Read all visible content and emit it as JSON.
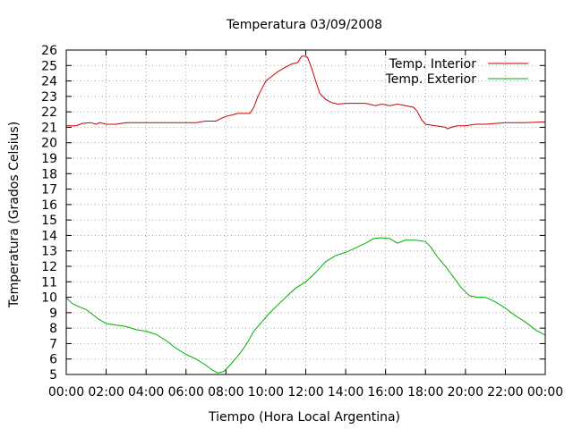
{
  "chart_data": {
    "type": "line",
    "title": "Temperatura 03/09/2008",
    "xlabel": "Tiempo (Hora Local Argentina)",
    "ylabel": "Temperatura (Grados Celsius)",
    "xlim": [
      0,
      24
    ],
    "ylim": [
      5,
      26
    ],
    "grid": true,
    "legend_position": "top-right",
    "x_ticks": [
      "00:00",
      "02:00",
      "04:00",
      "06:00",
      "08:00",
      "10:00",
      "12:00",
      "14:00",
      "16:00",
      "18:00",
      "20:00",
      "22:00",
      "00:00"
    ],
    "y_ticks": [
      5,
      6,
      7,
      8,
      9,
      10,
      11,
      12,
      13,
      14,
      15,
      16,
      17,
      18,
      19,
      20,
      21,
      22,
      23,
      24,
      25,
      26
    ],
    "series": [
      {
        "name": "Temp. Interior",
        "color": "#cc0000",
        "points": [
          [
            0,
            21.1
          ],
          [
            0.5,
            21.1
          ],
          [
            0.8,
            21.25
          ],
          [
            1.2,
            21.3
          ],
          [
            1.5,
            21.2
          ],
          [
            1.7,
            21.3
          ],
          [
            2,
            21.2
          ],
          [
            2.5,
            21.2
          ],
          [
            3,
            21.3
          ],
          [
            4,
            21.3
          ],
          [
            5,
            21.3
          ],
          [
            6,
            21.3
          ],
          [
            6.5,
            21.3
          ],
          [
            7,
            21.4
          ],
          [
            7.5,
            21.4
          ],
          [
            7.8,
            21.6
          ],
          [
            8,
            21.7
          ],
          [
            8.3,
            21.8
          ],
          [
            8.6,
            21.9
          ],
          [
            9,
            21.9
          ],
          [
            9.2,
            21.9
          ],
          [
            9.4,
            22.3
          ],
          [
            9.6,
            23.0
          ],
          [
            9.8,
            23.5
          ],
          [
            10,
            24.0
          ],
          [
            10.3,
            24.3
          ],
          [
            10.6,
            24.6
          ],
          [
            11,
            24.9
          ],
          [
            11.3,
            25.1
          ],
          [
            11.6,
            25.2
          ],
          [
            11.8,
            25.6
          ],
          [
            12,
            25.6
          ],
          [
            12.1,
            25.5
          ],
          [
            12.3,
            24.8
          ],
          [
            12.5,
            24.0
          ],
          [
            12.7,
            23.2
          ],
          [
            13,
            22.8
          ],
          [
            13.3,
            22.6
          ],
          [
            13.6,
            22.5
          ],
          [
            14,
            22.55
          ],
          [
            15,
            22.55
          ],
          [
            15.5,
            22.4
          ],
          [
            15.8,
            22.5
          ],
          [
            16.2,
            22.4
          ],
          [
            16.6,
            22.5
          ],
          [
            17,
            22.4
          ],
          [
            17.4,
            22.3
          ],
          [
            17.6,
            22.0
          ],
          [
            17.8,
            21.5
          ],
          [
            18,
            21.2
          ],
          [
            18.5,
            21.1
          ],
          [
            19,
            21.0
          ],
          [
            19.1,
            20.9
          ],
          [
            19.3,
            21.0
          ],
          [
            19.6,
            21.1
          ],
          [
            20,
            21.1
          ],
          [
            20.5,
            21.2
          ],
          [
            21,
            21.2
          ],
          [
            22,
            21.3
          ],
          [
            23,
            21.3
          ],
          [
            24,
            21.35
          ]
        ]
      },
      {
        "name": "Temp. Exterior",
        "color": "#00b000",
        "points": [
          [
            0,
            9.95
          ],
          [
            0.3,
            9.6
          ],
          [
            0.6,
            9.4
          ],
          [
            1,
            9.2
          ],
          [
            1.3,
            8.9
          ],
          [
            1.6,
            8.6
          ],
          [
            2,
            8.3
          ],
          [
            2.5,
            8.2
          ],
          [
            3,
            8.1
          ],
          [
            3.5,
            7.9
          ],
          [
            4,
            7.8
          ],
          [
            4.5,
            7.6
          ],
          [
            5,
            7.2
          ],
          [
            5.5,
            6.7
          ],
          [
            6,
            6.3
          ],
          [
            6.5,
            6.0
          ],
          [
            7,
            5.6
          ],
          [
            7.3,
            5.3
          ],
          [
            7.6,
            5.1
          ],
          [
            7.9,
            5.2
          ],
          [
            8.2,
            5.6
          ],
          [
            8.6,
            6.2
          ],
          [
            9,
            6.9
          ],
          [
            9.4,
            7.8
          ],
          [
            9.8,
            8.4
          ],
          [
            10.2,
            9.0
          ],
          [
            10.6,
            9.5
          ],
          [
            11,
            10.0
          ],
          [
            11.5,
            10.6
          ],
          [
            12,
            11.0
          ],
          [
            12.5,
            11.6
          ],
          [
            13,
            12.3
          ],
          [
            13.5,
            12.7
          ],
          [
            14,
            12.9
          ],
          [
            14.5,
            13.2
          ],
          [
            15,
            13.5
          ],
          [
            15.4,
            13.8
          ],
          [
            15.8,
            13.85
          ],
          [
            16.2,
            13.8
          ],
          [
            16.6,
            13.5
          ],
          [
            17,
            13.7
          ],
          [
            17.5,
            13.7
          ],
          [
            18,
            13.6
          ],
          [
            18.3,
            13.2
          ],
          [
            18.6,
            12.6
          ],
          [
            19,
            12.0
          ],
          [
            19.4,
            11.3
          ],
          [
            19.8,
            10.6
          ],
          [
            20.2,
            10.1
          ],
          [
            20.6,
            10.0
          ],
          [
            21,
            10.0
          ],
          [
            21.5,
            9.7
          ],
          [
            22,
            9.3
          ],
          [
            22.5,
            8.8
          ],
          [
            23,
            8.4
          ],
          [
            23.5,
            7.9
          ],
          [
            24,
            7.55
          ]
        ]
      }
    ]
  }
}
